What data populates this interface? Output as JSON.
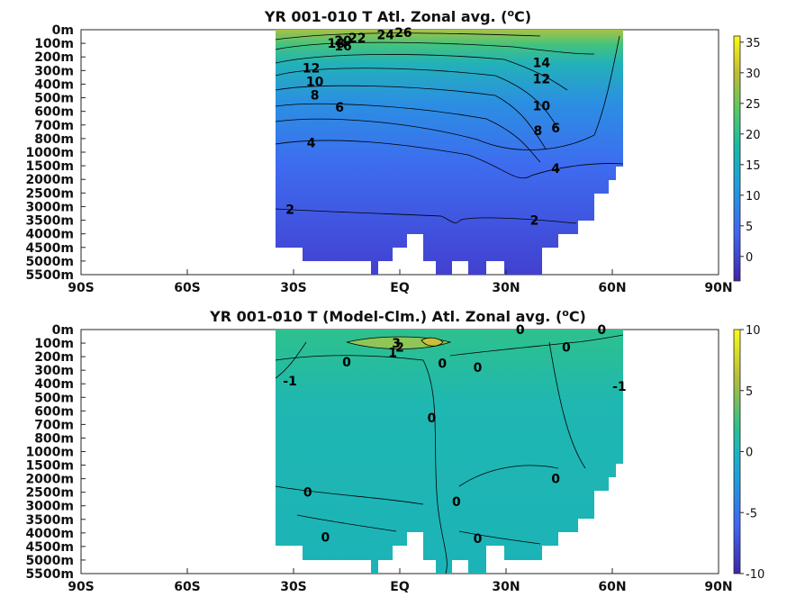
{
  "chart_data": [
    {
      "type": "heatmap",
      "title": "YR 001-010 T Atl. Zonal avg. (",
      "title_sup": "o",
      "title_suffix": "C)",
      "xticks": [
        "90S",
        "60S",
        "30S",
        "EQ",
        "30N",
        "60N",
        "90N"
      ],
      "xtick_values": [
        -90,
        -60,
        -30,
        0,
        30,
        60,
        90
      ],
      "yticks": [
        "0m",
        "100m",
        "200m",
        "300m",
        "400m",
        "500m",
        "600m",
        "700m",
        "800m",
        "1000m",
        "1500m",
        "2000m",
        "2500m",
        "3000m",
        "3500m",
        "4000m",
        "4500m",
        "5000m",
        "5500m"
      ],
      "colorbar": {
        "ticks": [
          "0",
          "5",
          "10",
          "15",
          "20",
          "25",
          "30",
          "35"
        ],
        "values": [
          0,
          5,
          10,
          15,
          20,
          25,
          30,
          35
        ],
        "min": -4,
        "max": 36
      },
      "contour_labels": [
        {
          "text": "26",
          "lat": 1,
          "depth_index": 0.2
        },
        {
          "text": "24",
          "lat": -4,
          "depth_index": 0.35
        },
        {
          "text": "22",
          "lat": -12,
          "depth_index": 0.6
        },
        {
          "text": "20",
          "lat": -16,
          "depth_index": 0.8
        },
        {
          "text": "18",
          "lat": -18,
          "depth_index": 1.0
        },
        {
          "text": "16",
          "lat": -16,
          "depth_index": 1.2
        },
        {
          "text": "14",
          "lat": 40,
          "depth_index": 2.4
        },
        {
          "text": "12",
          "lat": -25,
          "depth_index": 2.8
        },
        {
          "text": "12",
          "lat": 40,
          "depth_index": 3.6
        },
        {
          "text": "10",
          "lat": -24,
          "depth_index": 3.8
        },
        {
          "text": "10",
          "lat": 40,
          "depth_index": 5.6
        },
        {
          "text": "8",
          "lat": -24,
          "depth_index": 4.8
        },
        {
          "text": "8",
          "lat": 39,
          "depth_index": 7.4
        },
        {
          "text": "6",
          "lat": -17,
          "depth_index": 5.7
        },
        {
          "text": "6",
          "lat": 44,
          "depth_index": 7.2
        },
        {
          "text": "4",
          "lat": -25,
          "depth_index": 8.3
        },
        {
          "text": "4",
          "lat": 44,
          "depth_index": 10.2
        },
        {
          "text": "2",
          "lat": -31,
          "depth_index": 13.2
        },
        {
          "text": "2",
          "lat": 38,
          "depth_index": 14.0
        }
      ]
    },
    {
      "type": "heatmap",
      "title": "YR 001-010 T (Model-Clm.) Atl. Zonal avg. (",
      "title_sup": "o",
      "title_suffix": "C)",
      "xticks": [
        "90S",
        "60S",
        "30S",
        "EQ",
        "30N",
        "60N",
        "90N"
      ],
      "xtick_values": [
        -90,
        -60,
        -30,
        0,
        30,
        60,
        90
      ],
      "yticks": [
        "0m",
        "100m",
        "200m",
        "300m",
        "400m",
        "500m",
        "600m",
        "700m",
        "800m",
        "1000m",
        "1500m",
        "2000m",
        "2500m",
        "3000m",
        "3500m",
        "4000m",
        "4500m",
        "5000m",
        "5500m"
      ],
      "colorbar": {
        "ticks": [
          "10",
          "5",
          "0",
          "-5",
          "-10"
        ],
        "values": [
          10,
          5,
          0,
          -5,
          -10
        ],
        "min": -10,
        "max": 10
      },
      "contour_labels": [
        {
          "text": "3",
          "lat": -1,
          "depth_index": 1.0
        },
        {
          "text": "2",
          "lat": 0,
          "depth_index": 1.3
        },
        {
          "text": "1",
          "lat": -2,
          "depth_index": 1.7
        },
        {
          "text": "0",
          "lat": 34,
          "depth_index": 0.0
        },
        {
          "text": "0",
          "lat": 57,
          "depth_index": 0.0
        },
        {
          "text": "0",
          "lat": 47,
          "depth_index": 1.3
        },
        {
          "text": "0",
          "lat": -15,
          "depth_index": 2.4
        },
        {
          "text": "0",
          "lat": 12,
          "depth_index": 2.5
        },
        {
          "text": "0",
          "lat": 22,
          "depth_index": 2.8
        },
        {
          "text": "-1",
          "lat": -31,
          "depth_index": 3.8
        },
        {
          "text": "-1",
          "lat": 62,
          "depth_index": 4.2
        },
        {
          "text": "0",
          "lat": 9,
          "depth_index": 6.5
        },
        {
          "text": "0",
          "lat": 44,
          "depth_index": 11.0
        },
        {
          "text": "0",
          "lat": -26,
          "depth_index": 12.0
        },
        {
          "text": "0",
          "lat": 16,
          "depth_index": 12.7
        },
        {
          "text": "0",
          "lat": -21,
          "depth_index": 15.3
        },
        {
          "text": "0",
          "lat": 22,
          "depth_index": 15.4
        }
      ]
    }
  ]
}
